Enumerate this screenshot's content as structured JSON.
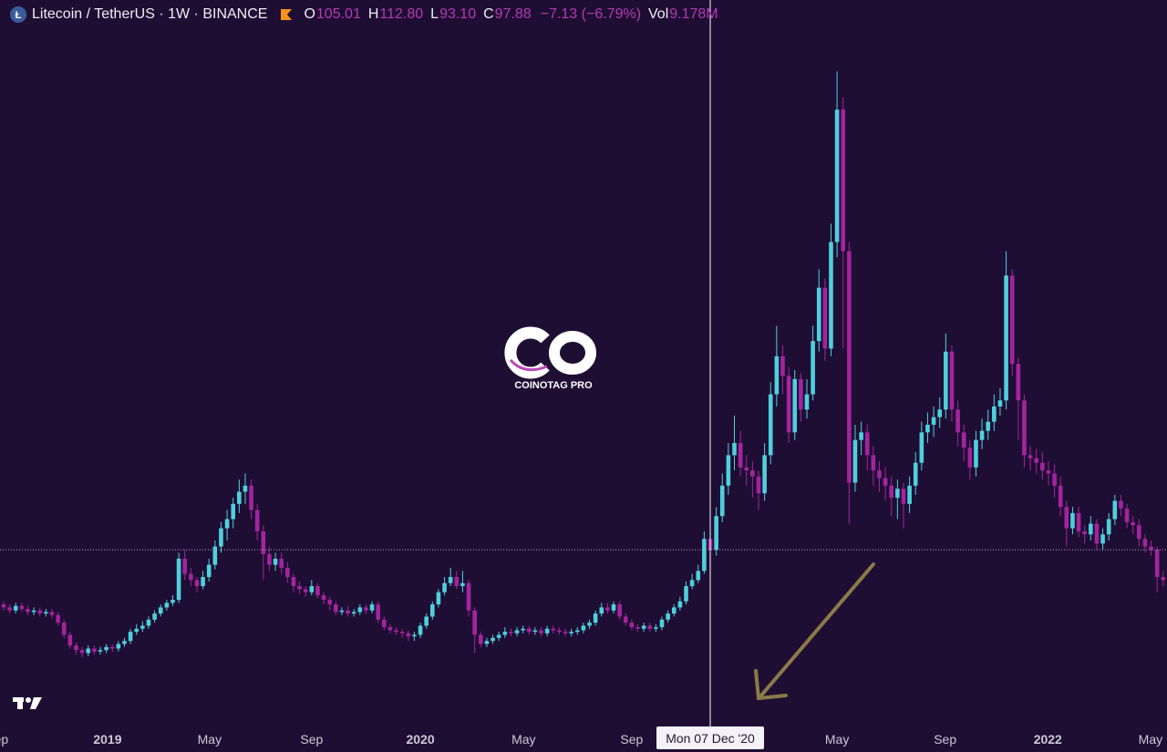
{
  "header": {
    "symbol": "Litecoin / TetherUS · 1W · BINANCE",
    "ohlc_labels": [
      "O",
      "H",
      "L",
      "C"
    ],
    "ohlc_values": [
      "105.01",
      "112.80",
      "93.10",
      "97.88"
    ],
    "change": "−7.13 (−6.79%)",
    "volume_label": "Vol",
    "volume": "9.178M"
  },
  "watermark": "COINOTAG PRO",
  "chart_data": {
    "type": "candlestick",
    "up_color": "#4fd0dc",
    "down_color": "#a3249f",
    "ylim": [
      -14,
      459
    ],
    "xticks": [
      {
        "value": -1.1,
        "label": "Sep"
      },
      {
        "value": 17.2,
        "label": "2019"
      },
      {
        "value": 34.1,
        "label": "May"
      },
      {
        "value": 51.0,
        "label": "Sep"
      },
      {
        "value": 69.0,
        "label": "2020"
      },
      {
        "value": 86.1,
        "label": "May"
      },
      {
        "value": 104.0,
        "label": "Sep"
      },
      {
        "value": 138.0,
        "label": "May"
      },
      {
        "value": 155.9,
        "label": "Sep"
      },
      {
        "value": 172.9,
        "label": "2022"
      },
      {
        "value": 189.9,
        "label": "May"
      }
    ],
    "crosshair": {
      "index": 117,
      "label": "Mon 07 Dec '20"
    },
    "open": [
      62,
      60,
      58,
      61,
      59,
      57,
      58,
      56,
      57,
      55,
      50,
      42,
      35,
      32,
      30,
      33,
      31,
      32,
      34,
      33,
      36,
      38,
      44,
      46,
      48,
      52,
      56,
      60,
      63,
      65,
      92,
      82,
      78,
      74,
      80,
      88,
      100,
      112,
      118,
      128,
      136,
      140,
      124,
      110,
      95,
      88,
      92,
      86,
      80,
      74,
      72,
      70,
      74,
      68,
      65,
      62,
      57,
      58,
      56,
      57,
      60,
      58,
      62,
      52,
      47,
      45,
      44,
      43,
      41,
      42,
      48,
      54,
      62,
      70,
      76,
      80,
      74,
      76,
      58,
      42,
      36,
      38,
      40,
      42,
      44,
      43,
      45,
      46,
      44,
      45,
      43,
      46,
      45,
      44,
      43,
      44,
      45,
      48,
      50,
      56,
      60,
      58,
      62,
      54,
      50,
      47,
      46,
      48,
      46,
      47,
      52,
      56,
      60,
      64,
      74,
      78,
      84,
      105.01,
      97.88,
      120,
      140,
      160,
      168,
      152,
      150,
      146,
      135,
      160,
      200,
      225,
      212,
      175,
      210,
      190,
      200,
      235,
      270,
      230,
      300,
      387,
      294,
      142,
      170,
      175,
      160,
      150,
      145,
      140,
      132,
      138,
      128,
      140,
      155,
      175,
      180,
      185,
      190,
      228,
      190,
      175,
      165,
      152,
      170,
      176,
      182,
      192,
      196,
      278,
      220,
      196,
      160,
      158,
      155,
      150,
      148,
      140,
      126,
      112,
      122,
      110,
      108,
      115,
      102,
      108,
      118,
      130,
      125,
      116,
      114,
      105,
      100,
      98,
      80
    ],
    "high": [
      64,
      62,
      63,
      63,
      61,
      60,
      60,
      59,
      59,
      57,
      52,
      44,
      37,
      34,
      35,
      35,
      34,
      36,
      36,
      38,
      40,
      46,
      49,
      51,
      54,
      58,
      62,
      65,
      68,
      96,
      98,
      86,
      80,
      84,
      92,
      104,
      116,
      124,
      132,
      144,
      148,
      144,
      128,
      114,
      100,
      96,
      96,
      90,
      82,
      77,
      74,
      78,
      76,
      70,
      67,
      64,
      60,
      61,
      59,
      62,
      62,
      64,
      64,
      54,
      49,
      47,
      46,
      45,
      44,
      50,
      56,
      64,
      72,
      80,
      86,
      84,
      84,
      78,
      60,
      44,
      40,
      42,
      44,
      47,
      46,
      47,
      48,
      48,
      47,
      47,
      48,
      48,
      47,
      46,
      46,
      47,
      50,
      52,
      58,
      63,
      63,
      64,
      64,
      56,
      52,
      49,
      50,
      50,
      49,
      54,
      58,
      62,
      67,
      77,
      82,
      88,
      110,
      112.8,
      126,
      148,
      168,
      186,
      176,
      160,
      156,
      150,
      168,
      208,
      245,
      232,
      218,
      216,
      214,
      210,
      245,
      282,
      276,
      312,
      412,
      395,
      300,
      180,
      182,
      180,
      166,
      156,
      152,
      146,
      144,
      142,
      146,
      162,
      182,
      188,
      192,
      198,
      240,
      232,
      196,
      180,
      170,
      176,
      184,
      190,
      200,
      204,
      294,
      282,
      224,
      200,
      166,
      164,
      162,
      156,
      154,
      146,
      130,
      126,
      126,
      114,
      120,
      118,
      112,
      122,
      134,
      134,
      128,
      120,
      118,
      108,
      104,
      100,
      84
    ],
    "low": [
      58,
      56,
      56,
      57,
      55,
      55,
      54,
      54,
      53,
      48,
      40,
      33,
      29,
      27,
      28,
      29,
      29,
      30,
      31,
      31,
      34,
      36,
      42,
      44,
      46,
      50,
      54,
      58,
      61,
      63,
      78,
      74,
      70,
      72,
      77,
      85,
      96,
      104,
      112,
      122,
      128,
      118,
      104,
      78,
      84,
      84,
      82,
      76,
      70,
      69,
      67,
      68,
      66,
      62,
      58,
      55,
      55,
      54,
      54,
      55,
      56,
      56,
      50,
      45,
      43,
      42,
      40,
      38,
      38,
      40,
      46,
      52,
      60,
      68,
      74,
      72,
      70,
      54,
      30,
      34,
      34,
      36,
      38,
      40,
      41,
      41,
      43,
      42,
      42,
      41,
      41,
      43,
      42,
      41,
      41,
      42,
      43,
      46,
      48,
      54,
      56,
      56,
      52,
      48,
      45,
      44,
      44,
      44,
      44,
      45,
      50,
      54,
      58,
      62,
      72,
      76,
      82,
      93.1,
      94,
      116,
      134,
      150,
      146,
      140,
      132,
      124,
      130,
      154,
      192,
      200,
      168,
      170,
      182,
      184,
      196,
      228,
      222,
      225,
      290,
      230,
      115,
      136,
      160,
      150,
      140,
      136,
      130,
      120,
      118,
      112,
      122,
      134,
      150,
      168,
      172,
      178,
      184,
      182,
      166,
      156,
      144,
      146,
      164,
      170,
      176,
      186,
      190,
      212,
      170,
      152,
      150,
      148,
      144,
      140,
      132,
      120,
      100,
      108,
      106,
      102,
      104,
      98,
      98,
      104,
      114,
      120,
      112,
      108,
      100,
      96,
      94,
      70,
      74
    ],
    "close": [
      60,
      58,
      61,
      59,
      57,
      58,
      56,
      57,
      55,
      50,
      42,
      35,
      32,
      30,
      33,
      31,
      32,
      34,
      33,
      36,
      38,
      44,
      46,
      48,
      52,
      56,
      60,
      63,
      65,
      92,
      82,
      78,
      74,
      80,
      88,
      100,
      112,
      118,
      128,
      136,
      140,
      124,
      110,
      95,
      88,
      92,
      86,
      80,
      74,
      72,
      70,
      74,
      68,
      65,
      62,
      57,
      58,
      56,
      57,
      60,
      58,
      62,
      52,
      47,
      45,
      44,
      43,
      41,
      42,
      48,
      54,
      62,
      70,
      76,
      80,
      74,
      76,
      58,
      42,
      36,
      38,
      40,
      42,
      44,
      43,
      45,
      46,
      44,
      45,
      43,
      46,
      45,
      44,
      43,
      44,
      45,
      48,
      50,
      56,
      60,
      58,
      62,
      54,
      50,
      47,
      46,
      48,
      46,
      47,
      52,
      56,
      60,
      64,
      74,
      78,
      84,
      105,
      97.88,
      120,
      140,
      160,
      168,
      152,
      150,
      146,
      135,
      160,
      200,
      225,
      212,
      175,
      210,
      190,
      200,
      235,
      270,
      230,
      300,
      387,
      294,
      142,
      170,
      175,
      160,
      150,
      145,
      140,
      132,
      138,
      128,
      140,
      155,
      175,
      180,
      185,
      190,
      228,
      190,
      175,
      165,
      152,
      170,
      176,
      182,
      192,
      196,
      278,
      220,
      196,
      160,
      158,
      155,
      150,
      148,
      140,
      126,
      112,
      122,
      110,
      108,
      115,
      102,
      108,
      118,
      130,
      125,
      116,
      114,
      105,
      100,
      98,
      80,
      78
    ]
  }
}
